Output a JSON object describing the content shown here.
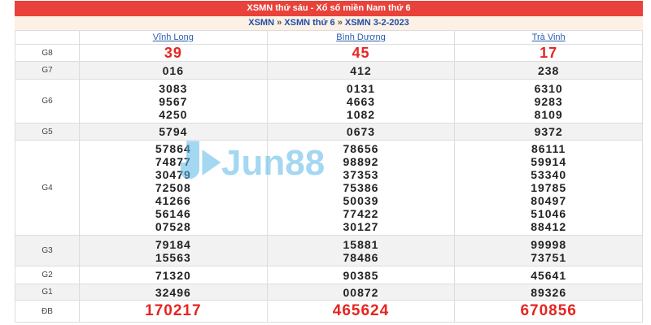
{
  "title": "XSMN thứ sáu - Xổ số miền Nam thứ 6",
  "breadcrumb": [
    "XSMN",
    "XSMN thứ 6",
    "XSMN 3-2-2023"
  ],
  "separator": "»",
  "provinces": [
    "Vĩnh Long",
    "Bình Dương",
    "Trà Vinh"
  ],
  "rows": [
    {
      "label": "G8",
      "values": [
        [
          "39"
        ],
        [
          "45"
        ],
        [
          "17"
        ]
      ]
    },
    {
      "label": "G7",
      "values": [
        [
          "016"
        ],
        [
          "412"
        ],
        [
          "238"
        ]
      ]
    },
    {
      "label": "G6",
      "values": [
        [
          "3083",
          "9567",
          "4250"
        ],
        [
          "0131",
          "4663",
          "1082"
        ],
        [
          "6310",
          "9283",
          "8109"
        ]
      ]
    },
    {
      "label": "G5",
      "values": [
        [
          "5794"
        ],
        [
          "0673"
        ],
        [
          "9372"
        ]
      ]
    },
    {
      "label": "G4",
      "values": [
        [
          "57864",
          "74877",
          "30479",
          "72508",
          "41266",
          "56146",
          "07528"
        ],
        [
          "78656",
          "98892",
          "37353",
          "75386",
          "50039",
          "77422",
          "30127"
        ],
        [
          "86111",
          "59914",
          "53340",
          "19785",
          "80497",
          "51046",
          "88412"
        ]
      ]
    },
    {
      "label": "G3",
      "values": [
        [
          "79184",
          "15563"
        ],
        [
          "15881",
          "78486"
        ],
        [
          "99998",
          "73751"
        ]
      ]
    },
    {
      "label": "G2",
      "values": [
        [
          "71320"
        ],
        [
          "90385"
        ],
        [
          "45641"
        ]
      ]
    },
    {
      "label": "G1",
      "values": [
        [
          "32496"
        ],
        [
          "00872"
        ],
        [
          "89326"
        ]
      ]
    },
    {
      "label": "ĐB",
      "values": [
        [
          "170217"
        ],
        [
          "465624"
        ],
        [
          "670856"
        ]
      ]
    }
  ],
  "watermark": "Jun88",
  "colors": {
    "header": "#e8423a",
    "prize": "#e52521",
    "link": "#1f4fa8"
  }
}
